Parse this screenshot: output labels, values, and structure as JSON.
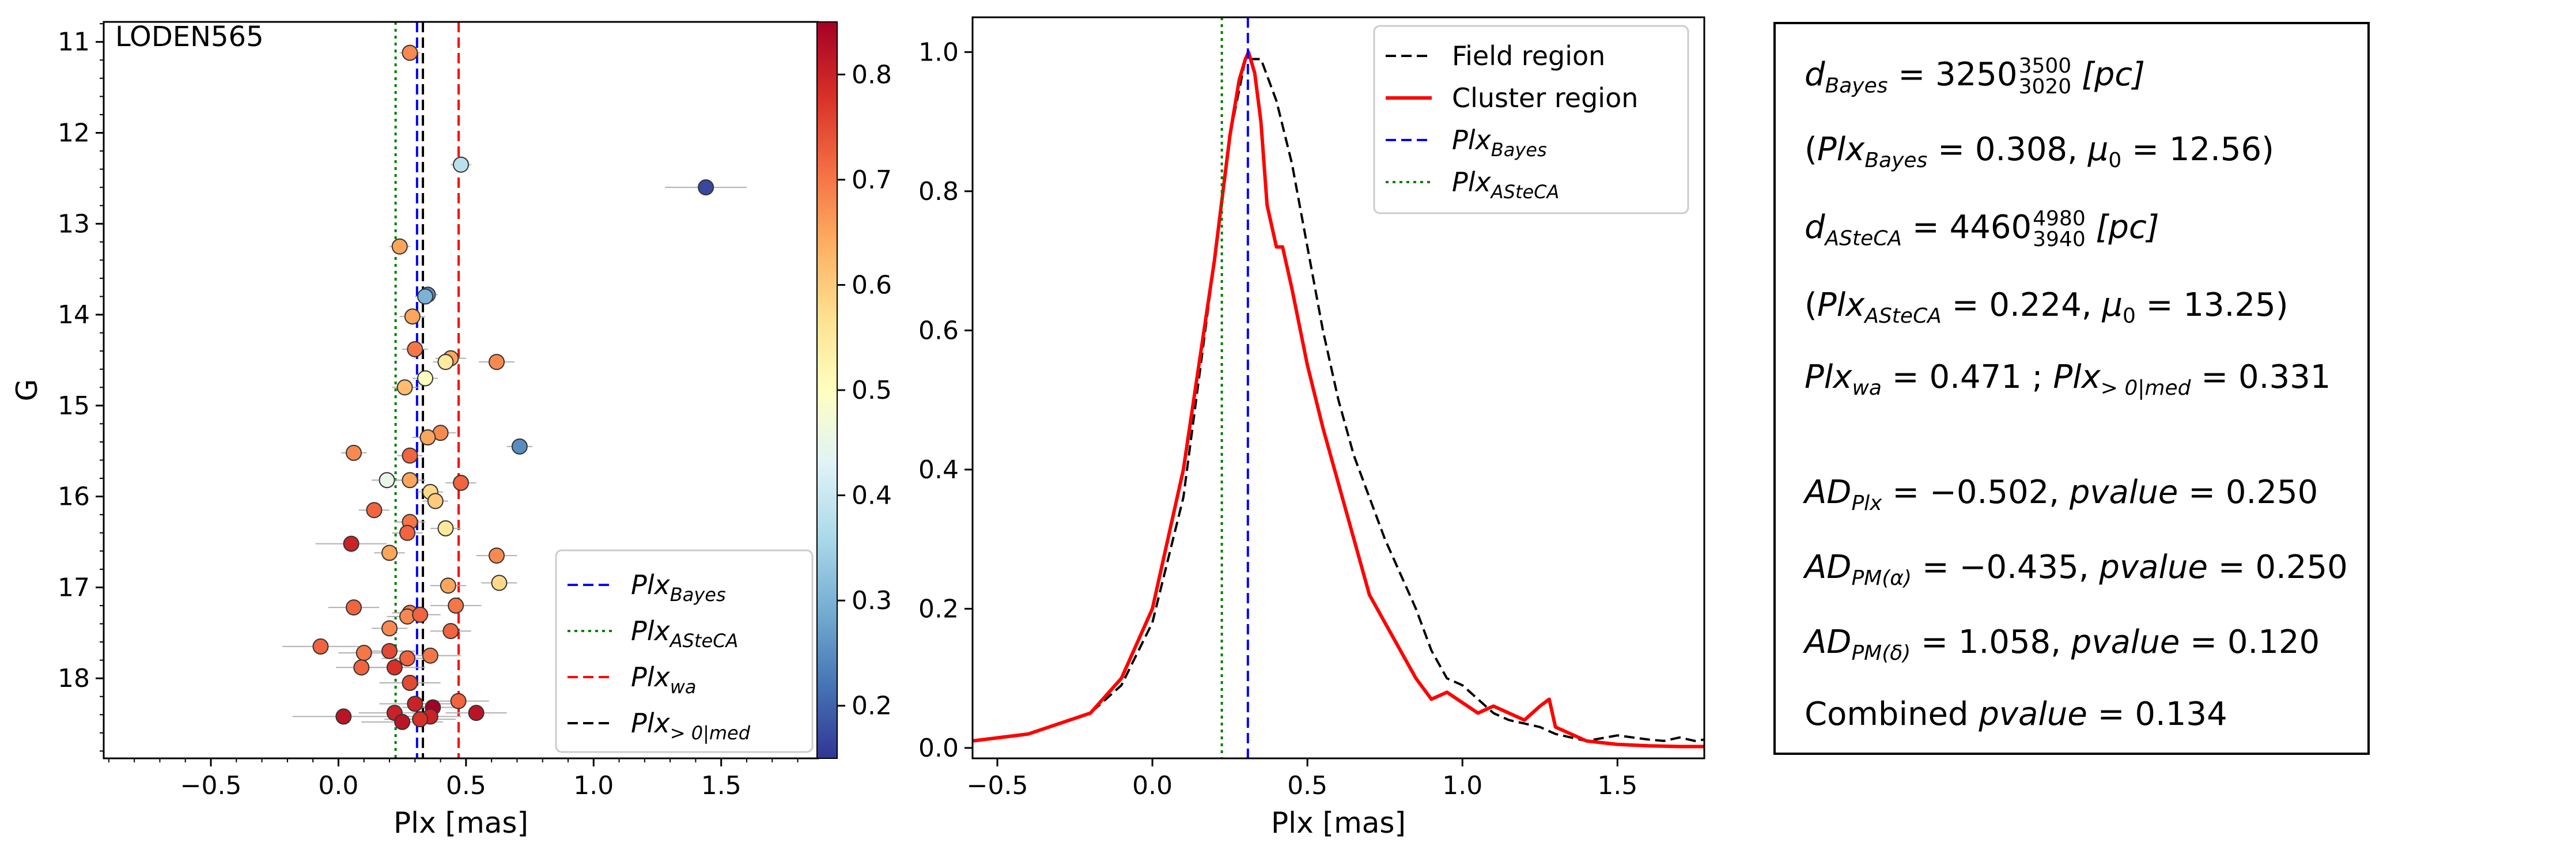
{
  "chart_data": [
    {
      "type": "scatter",
      "panel_label": "LODEN565",
      "xlabel": "Plx [mas]",
      "ylabel": "G",
      "xlim": [
        -0.92,
        1.88
      ],
      "ylim": [
        18.88,
        10.78
      ],
      "y_inverted": true,
      "xticks": [
        "−0.5",
        "0.0",
        "0.5",
        "1.0",
        "1.5"
      ],
      "xtick_values": [
        -0.5,
        0.0,
        0.5,
        1.0,
        1.5
      ],
      "yticks": [
        "11",
        "12",
        "13",
        "14",
        "15",
        "16",
        "17",
        "18"
      ],
      "ytick_values": [
        11,
        12,
        13,
        14,
        15,
        16,
        17,
        18
      ],
      "colorbar": {
        "range": [
          0.15,
          0.85
        ],
        "ticks": [
          "0.2",
          "0.3",
          "0.4",
          "0.5",
          "0.6",
          "0.7",
          "0.8"
        ],
        "tick_values": [
          0.2,
          0.3,
          0.4,
          0.5,
          0.6,
          0.7,
          0.8
        ],
        "colormap": "RdYlBu_r"
      },
      "vlines": [
        {
          "name": "Plx_Bayes",
          "x": 0.308,
          "color": "#0000ff",
          "style": "dashed"
        },
        {
          "name": "Plx_>0|med",
          "x": 0.331,
          "color": "#000000",
          "style": "dashed"
        },
        {
          "name": "Plx_ASteCA",
          "x": 0.224,
          "color": "#008000",
          "style": "dotted"
        },
        {
          "name": "Plx_wa",
          "x": 0.471,
          "color": "#ff0000",
          "style": "dashed"
        }
      ],
      "legend": {
        "placement": "lower-right",
        "entries": [
          {
            "base": "Plx",
            "sub": "Bayes",
            "color": "#0000ff",
            "style": "dashed"
          },
          {
            "base": "Plx",
            "sub": "ASteCA",
            "color": "#008000",
            "style": "dotted"
          },
          {
            "base": "Plx",
            "sub": "wa",
            "color": "#ff0000",
            "style": "dashed"
          },
          {
            "base": "Plx",
            "sub": "> 0|med",
            "color": "#000000",
            "style": "dashed"
          }
        ]
      },
      "points": [
        {
          "x": 0.28,
          "y": 11.12,
          "xerr": 0.04,
          "c": 0.68
        },
        {
          "x": 0.48,
          "y": 12.35,
          "xerr": 0.04,
          "c": 0.38
        },
        {
          "x": 1.44,
          "y": 12.6,
          "xerr": 0.16,
          "c": 0.17
        },
        {
          "x": 0.24,
          "y": 13.25,
          "xerr": 0.04,
          "c": 0.65
        },
        {
          "x": 0.35,
          "y": 13.78,
          "xerr": 0.04,
          "c": 0.25
        },
        {
          "x": 0.34,
          "y": 13.8,
          "xerr": 0.04,
          "c": 0.3
        },
        {
          "x": 0.29,
          "y": 14.02,
          "xerr": 0.05,
          "c": 0.65
        },
        {
          "x": 0.3,
          "y": 14.38,
          "xerr": 0.05,
          "c": 0.7
        },
        {
          "x": 0.44,
          "y": 14.48,
          "xerr": 0.06,
          "c": 0.65
        },
        {
          "x": 0.62,
          "y": 14.52,
          "xerr": 0.07,
          "c": 0.68
        },
        {
          "x": 0.42,
          "y": 14.52,
          "xerr": 0.05,
          "c": 0.55
        },
        {
          "x": 0.34,
          "y": 14.7,
          "xerr": 0.05,
          "c": 0.5
        },
        {
          "x": 0.26,
          "y": 14.8,
          "xerr": 0.05,
          "c": 0.62
        },
        {
          "x": 0.4,
          "y": 15.3,
          "xerr": 0.06,
          "c": 0.68
        },
        {
          "x": 0.35,
          "y": 15.35,
          "xerr": 0.06,
          "c": 0.65
        },
        {
          "x": 0.71,
          "y": 15.45,
          "xerr": 0.05,
          "c": 0.25
        },
        {
          "x": 0.06,
          "y": 15.52,
          "xerr": 0.05,
          "c": 0.68
        },
        {
          "x": 0.28,
          "y": 15.55,
          "xerr": 0.05,
          "c": 0.72
        },
        {
          "x": 0.19,
          "y": 15.82,
          "xerr": 0.06,
          "c": 0.45
        },
        {
          "x": 0.28,
          "y": 15.82,
          "xerr": 0.06,
          "c": 0.65
        },
        {
          "x": 0.48,
          "y": 15.85,
          "xerr": 0.06,
          "c": 0.72
        },
        {
          "x": 0.36,
          "y": 15.95,
          "xerr": 0.05,
          "c": 0.58
        },
        {
          "x": 0.38,
          "y": 16.05,
          "xerr": 0.05,
          "c": 0.6
        },
        {
          "x": 0.14,
          "y": 16.15,
          "xerr": 0.06,
          "c": 0.72
        },
        {
          "x": 0.28,
          "y": 16.28,
          "xerr": 0.06,
          "c": 0.7
        },
        {
          "x": 0.42,
          "y": 16.35,
          "xerr": 0.06,
          "c": 0.55
        },
        {
          "x": 0.27,
          "y": 16.4,
          "xerr": 0.06,
          "c": 0.72
        },
        {
          "x": 0.05,
          "y": 16.52,
          "xerr": 0.14,
          "c": 0.8
        },
        {
          "x": 0.2,
          "y": 16.62,
          "xerr": 0.06,
          "c": 0.65
        },
        {
          "x": 0.62,
          "y": 16.65,
          "xerr": 0.08,
          "c": 0.68
        },
        {
          "x": 0.63,
          "y": 16.95,
          "xerr": 0.07,
          "c": 0.58
        },
        {
          "x": 0.43,
          "y": 16.98,
          "xerr": 0.07,
          "c": 0.65
        },
        {
          "x": 0.06,
          "y": 17.22,
          "xerr": 0.1,
          "c": 0.72
        },
        {
          "x": 0.28,
          "y": 17.28,
          "xerr": 0.07,
          "c": 0.7
        },
        {
          "x": 0.27,
          "y": 17.32,
          "xerr": 0.08,
          "c": 0.68
        },
        {
          "x": 0.32,
          "y": 17.3,
          "xerr": 0.08,
          "c": 0.72
        },
        {
          "x": 0.46,
          "y": 17.2,
          "xerr": 0.1,
          "c": 0.7
        },
        {
          "x": 0.2,
          "y": 17.45,
          "xerr": 0.07,
          "c": 0.68
        },
        {
          "x": 0.44,
          "y": 17.48,
          "xerr": 0.08,
          "c": 0.72
        },
        {
          "x": -0.07,
          "y": 17.65,
          "xerr": 0.15,
          "c": 0.72
        },
        {
          "x": 0.1,
          "y": 17.72,
          "xerr": 0.1,
          "c": 0.7
        },
        {
          "x": 0.2,
          "y": 17.7,
          "xerr": 0.1,
          "c": 0.75
        },
        {
          "x": 0.27,
          "y": 17.78,
          "xerr": 0.1,
          "c": 0.72
        },
        {
          "x": 0.36,
          "y": 17.75,
          "xerr": 0.12,
          "c": 0.7
        },
        {
          "x": 0.09,
          "y": 17.88,
          "xerr": 0.1,
          "c": 0.72
        },
        {
          "x": 0.22,
          "y": 17.88,
          "xerr": 0.12,
          "c": 0.78
        },
        {
          "x": 0.28,
          "y": 18.05,
          "xerr": 0.12,
          "c": 0.75
        },
        {
          "x": 0.47,
          "y": 18.25,
          "xerr": 0.12,
          "c": 0.72
        },
        {
          "x": 0.3,
          "y": 18.28,
          "xerr": 0.14,
          "c": 0.8
        },
        {
          "x": 0.37,
          "y": 18.32,
          "xerr": 0.12,
          "c": 0.85
        },
        {
          "x": 0.22,
          "y": 18.38,
          "xerr": 0.14,
          "c": 0.8
        },
        {
          "x": 0.54,
          "y": 18.38,
          "xerr": 0.12,
          "c": 0.82
        },
        {
          "x": 0.02,
          "y": 18.42,
          "xerr": 0.2,
          "c": 0.82
        },
        {
          "x": 0.36,
          "y": 18.42,
          "xerr": 0.12,
          "c": 0.8
        },
        {
          "x": 0.25,
          "y": 18.48,
          "xerr": 0.16,
          "c": 0.82
        },
        {
          "x": 0.32,
          "y": 18.45,
          "xerr": 0.14,
          "c": 0.78
        }
      ]
    },
    {
      "type": "line",
      "xlabel": "Plx [mas]",
      "ylabel": "",
      "xlim": [
        -0.58,
        1.78
      ],
      "ylim": [
        -0.015,
        1.05
      ],
      "xticks": [
        "−0.5",
        "0.0",
        "0.5",
        "1.0",
        "1.5"
      ],
      "xtick_values": [
        -0.5,
        0.0,
        0.5,
        1.0,
        1.5
      ],
      "yticks": [
        "0.0",
        "0.2",
        "0.4",
        "0.6",
        "0.8",
        "1.0"
      ],
      "ytick_values": [
        0.0,
        0.2,
        0.4,
        0.6,
        0.8,
        1.0
      ],
      "legend": {
        "placement": "top-right",
        "entries": [
          {
            "label": "Field region",
            "color": "#000000",
            "style": "dashed"
          },
          {
            "label": "Cluster region",
            "color": "#ff0000",
            "style": "solid"
          },
          {
            "base": "Plx",
            "sub": "Bayes",
            "color": "#0000ff",
            "style": "dashed"
          },
          {
            "base": "Plx",
            "sub": "ASteCA",
            "color": "#008000",
            "style": "dotted"
          }
        ]
      },
      "vlines": [
        {
          "name": "Plx_Bayes",
          "x": 0.308,
          "color": "#0000ff",
          "style": "dashed"
        },
        {
          "name": "Plx_ASteCA",
          "x": 0.224,
          "color": "#008000",
          "style": "dotted"
        }
      ],
      "series": [
        {
          "name": "Field region",
          "color": "#000000",
          "style": "dashed",
          "x": [
            -0.58,
            -0.4,
            -0.2,
            -0.1,
            0.0,
            0.1,
            0.2,
            0.25,
            0.3,
            0.35,
            0.4,
            0.45,
            0.5,
            0.55,
            0.6,
            0.65,
            0.7,
            0.75,
            0.8,
            0.85,
            0.9,
            0.95,
            1.0,
            1.05,
            1.1,
            1.15,
            1.2,
            1.25,
            1.3,
            1.4,
            1.5,
            1.55,
            1.6,
            1.65,
            1.7,
            1.75,
            1.78
          ],
          "y": [
            0.01,
            0.02,
            0.05,
            0.09,
            0.18,
            0.36,
            0.7,
            0.88,
            0.99,
            0.99,
            0.93,
            0.84,
            0.72,
            0.6,
            0.5,
            0.42,
            0.36,
            0.3,
            0.25,
            0.2,
            0.14,
            0.1,
            0.09,
            0.07,
            0.05,
            0.04,
            0.035,
            0.03,
            0.02,
            0.01,
            0.018,
            0.015,
            0.012,
            0.01,
            0.015,
            0.01,
            0.012
          ]
        },
        {
          "name": "Cluster region",
          "color": "#ff0000",
          "style": "solid",
          "x": [
            -0.58,
            -0.4,
            -0.2,
            -0.1,
            0.0,
            0.1,
            0.2,
            0.25,
            0.28,
            0.3,
            0.31,
            0.33,
            0.35,
            0.37,
            0.4,
            0.42,
            0.45,
            0.5,
            0.55,
            0.6,
            0.65,
            0.7,
            0.75,
            0.8,
            0.85,
            0.9,
            0.95,
            1.0,
            1.05,
            1.1,
            1.15,
            1.2,
            1.25,
            1.28,
            1.3,
            1.35,
            1.4,
            1.5,
            1.6,
            1.7,
            1.78
          ],
          "y": [
            0.01,
            0.02,
            0.05,
            0.1,
            0.2,
            0.4,
            0.7,
            0.88,
            0.96,
            0.99,
            1.0,
            0.97,
            0.9,
            0.78,
            0.72,
            0.72,
            0.66,
            0.55,
            0.46,
            0.38,
            0.3,
            0.22,
            0.18,
            0.14,
            0.1,
            0.07,
            0.08,
            0.065,
            0.05,
            0.06,
            0.05,
            0.04,
            0.06,
            0.07,
            0.03,
            0.02,
            0.01,
            0.005,
            0.003,
            0.002,
            0.002
          ]
        }
      ]
    }
  ],
  "stats": {
    "d_bayes": {
      "base": "d",
      "sub": "Bayes",
      "value": "3250",
      "sup": "3500",
      "low": "3020",
      "unit": "[pc]"
    },
    "plx_bayes": {
      "base": "Plx",
      "sub": "Bayes",
      "value": "0.308",
      "mu": "12.56"
    },
    "d_asteca": {
      "base": "d",
      "sub": "ASteCA",
      "value": "4460",
      "sup": "4980",
      "low": "3940",
      "unit": "[pc]"
    },
    "plx_asteca": {
      "base": "Plx",
      "sub": "ASteCA",
      "value": "0.224",
      "mu": "13.25"
    },
    "plx_wa": {
      "base": "Plx",
      "sub": "wa",
      "value": "0.471",
      "sub2": "> 0|med",
      "value2": "0.331"
    },
    "ad_plx": {
      "base": "AD",
      "sub": "Plx",
      "value": "−0.502",
      "pvalue": "0.250"
    },
    "ad_pma": {
      "base": "AD",
      "sub": "PM(α)",
      "value": "−0.435",
      "pvalue": "0.250"
    },
    "ad_pmd": {
      "base": "AD",
      "sub": "PM(δ)",
      "value": "1.058",
      "pvalue": "0.120"
    },
    "combined": {
      "label": "Combined",
      "pvalue_word": "pvalue",
      "value": "0.134"
    }
  }
}
